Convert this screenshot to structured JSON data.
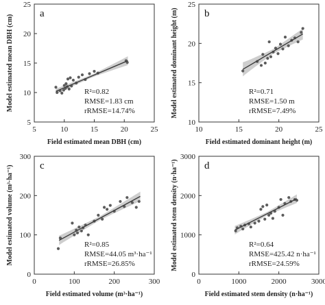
{
  "chart_data": [
    {
      "type": "scatter",
      "panel_label": "a",
      "xlabel": "Field estimated mean DBH (cm)",
      "ylabel": "Model estimated mean DBH (cm)",
      "xlim": [
        5,
        25
      ],
      "ylim": [
        5,
        25
      ],
      "xticks": [
        5,
        10,
        15,
        20,
        25
      ],
      "yticks": [
        5,
        10,
        15,
        20,
        25
      ],
      "x": [
        8.6,
        8.8,
        9.3,
        9.6,
        9.9,
        10.0,
        10.2,
        10.3,
        10.5,
        10.6,
        10.8,
        11.0,
        11.2,
        11.5,
        12.0,
        12.4,
        13.0,
        13.5,
        14.2,
        15.0,
        15.6,
        20.3,
        20.5
      ],
      "y": [
        10.9,
        10.0,
        10.3,
        9.9,
        10.4,
        11.2,
        10.7,
        11.5,
        11.0,
        12.3,
        10.6,
        12.5,
        11.1,
        12.1,
        11.6,
        12.6,
        13.0,
        12.2,
        13.2,
        13.6,
        13.3,
        15.4,
        15.1
      ],
      "fit": [
        [
          8.6,
          10.2
        ],
        [
          20.6,
          15.4
        ]
      ],
      "band_halfwidth": [
        0.45,
        0.25,
        0.75
      ],
      "stats": [
        "R²=0.82",
        "RMSE=1.83 cm",
        "rRMSE=14.74%"
      ]
    },
    {
      "type": "scatter",
      "panel_label": "b",
      "xlabel": "Field estimated dominant height (m)",
      "ylabel": "Model estimated dominant height (m)",
      "xlim": [
        10,
        25
      ],
      "ylim": [
        10,
        25
      ],
      "xticks": [
        10,
        15,
        20,
        25
      ],
      "yticks": [
        10,
        15,
        20,
        25
      ],
      "x": [
        15.5,
        17.3,
        17.8,
        18.0,
        18.3,
        18.6,
        18.8,
        19.0,
        19.3,
        19.6,
        19.9,
        20.2,
        20.5,
        20.8,
        21.2,
        21.6,
        22.0,
        22.4,
        22.8,
        23.0
      ],
      "y": [
        16.5,
        17.7,
        17.2,
        18.6,
        17.5,
        18.1,
        20.2,
        18.3,
        18.9,
        19.4,
        18.7,
        19.9,
        19.3,
        20.8,
        19.7,
        20.4,
        20.7,
        20.2,
        21.4,
        21.9
      ],
      "fit": [
        [
          15.5,
          16.7
        ],
        [
          23.0,
          21.2
        ]
      ],
      "band_halfwidth": [
        0.9,
        0.3,
        0.7
      ],
      "stats": [
        "R²=0.71",
        "RMSE=1.50 m",
        "rRMSE=7.49%"
      ]
    },
    {
      "type": "scatter",
      "panel_label": "c",
      "xlabel": "Field estimated volume (m³·ha⁻¹)",
      "ylabel": "Model estimated volume (m³·ha⁻¹)",
      "xlim": [
        0,
        300
      ],
      "ylim": [
        0,
        300
      ],
      "xticks": [
        0,
        100,
        200,
        300
      ],
      "yticks": [
        0,
        100,
        200,
        300
      ],
      "x": [
        60,
        65,
        95,
        100,
        105,
        108,
        112,
        118,
        122,
        128,
        135,
        150,
        160,
        170,
        175,
        182,
        190,
        200,
        215,
        225,
        232,
        245,
        255,
        262
      ],
      "y": [
        65,
        92,
        130,
        100,
        112,
        105,
        120,
        110,
        118,
        125,
        100,
        135,
        150,
        140,
        170,
        165,
        175,
        160,
        185,
        172,
        195,
        182,
        170,
        185
      ],
      "fit": [
        [
          62,
          86
        ],
        [
          265,
          198
        ]
      ],
      "band_halfwidth": [
        12,
        5,
        12
      ],
      "stats": [
        "R²=0.85",
        "RMSE=44.05 m³·ha⁻¹",
        "rRMSE=26.85%"
      ]
    },
    {
      "type": "scatter",
      "panel_label": "d",
      "xlabel": "Field estimated stem density (n·ha⁻¹)",
      "ylabel": "Model estimated stem density (n·ha⁻¹)",
      "xlim": [
        0,
        3000
      ],
      "ylim": [
        0,
        3000
      ],
      "xticks": [
        0,
        1000,
        2000,
        3000
      ],
      "yticks": [
        0,
        1000,
        2000,
        3000
      ],
      "x": [
        920,
        960,
        1050,
        1100,
        1150,
        1250,
        1300,
        1400,
        1500,
        1550,
        1600,
        1650,
        1700,
        1750,
        1800,
        1850,
        1900,
        2000,
        2050,
        2100,
        2150,
        2250,
        2300,
        2400,
        2450
      ],
      "y": [
        1100,
        1180,
        1220,
        1150,
        1250,
        1280,
        1200,
        1300,
        1350,
        1650,
        1720,
        1400,
        1760,
        1500,
        1550,
        1420,
        1600,
        1700,
        1900,
        1500,
        1800,
        1950,
        1850,
        1900,
        1880
      ],
      "fit": [
        [
          900,
          1120
        ],
        [
          2450,
          1920
        ]
      ],
      "band_halfwidth": [
        110,
        45,
        110
      ],
      "stats": [
        "R²=0.64",
        "RMSE=425.42 n·ha⁻¹",
        "rRMSE=24.59%"
      ]
    }
  ]
}
